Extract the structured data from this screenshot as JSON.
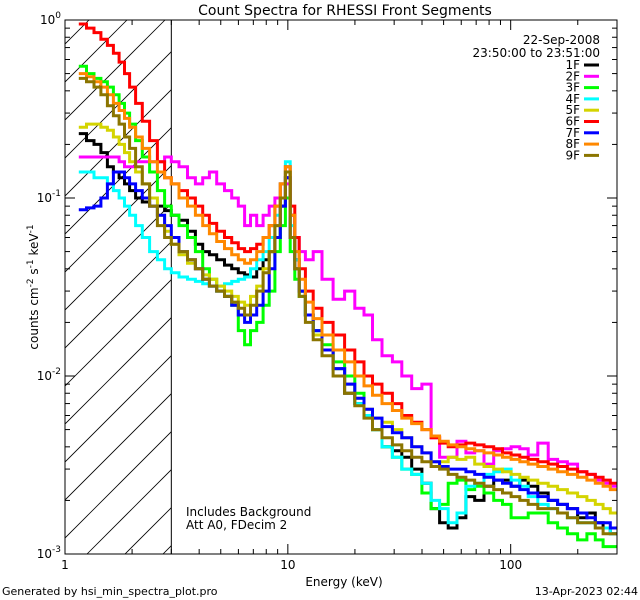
{
  "chart_data": {
    "type": "line",
    "title": "Count Spectra for RHESSI Front Segments",
    "xlabel": "Energy (keV)",
    "ylabel_parts": {
      "base": "counts cm",
      "exp1": "-2",
      "mid": " s",
      "exp2": "-1",
      "unit": " keV",
      "exp3": "-1"
    },
    "xscale": "log",
    "yscale": "log",
    "xlim": [
      1,
      300
    ],
    "ylim": [
      0.001,
      1
    ],
    "x_ticks": [
      {
        "value": 1,
        "label": "1"
      },
      {
        "value": 10,
        "label": "10"
      },
      {
        "value": 100,
        "label": "100"
      }
    ],
    "y_ticks": [
      {
        "value": 0.001,
        "base": "10",
        "exp": "-3"
      },
      {
        "value": 0.01,
        "base": "10",
        "exp": "-2"
      },
      {
        "value": 0.1,
        "base": "10",
        "exp": "-1"
      },
      {
        "value": 1,
        "base": "10",
        "exp": "0"
      }
    ],
    "hatched_region": [
      1,
      3
    ],
    "date": "22-Sep-2008",
    "time_range": "23:50:00 to 23:51:00",
    "annotations": [
      "Includes Background",
      "Att A0, FDecim 2"
    ],
    "legend_position": "top-right",
    "x": [
      1.2,
      1.3,
      1.4,
      1.5,
      1.6,
      1.7,
      1.8,
      1.9,
      2.0,
      2.15,
      2.3,
      2.5,
      2.7,
      2.9,
      3.1,
      3.4,
      3.7,
      4.0,
      4.3,
      4.6,
      5.0,
      5.4,
      5.8,
      6.2,
      6.6,
      7.0,
      7.5,
      8.0,
      8.5,
      9.0,
      9.5,
      10.0,
      10.5,
      11.0,
      11.5,
      12.5,
      13.5,
      15,
      17,
      19,
      21,
      23,
      25,
      28,
      31,
      34,
      38,
      42,
      46,
      50,
      55,
      60,
      66,
      72,
      80,
      88,
      96,
      105,
      115,
      125,
      140,
      155,
      170,
      190,
      210,
      230,
      250,
      270,
      290
    ],
    "series": [
      {
        "name": "1F",
        "color": "#000000",
        "values": [
          0.23,
          0.21,
          0.2,
          0.18,
          0.15,
          0.14,
          0.13,
          0.12,
          0.11,
          0.1,
          0.095,
          0.09,
          0.09,
          0.085,
          0.08,
          0.075,
          0.065,
          0.055,
          0.05,
          0.048,
          0.045,
          0.042,
          0.04,
          0.038,
          0.037,
          0.036,
          0.04,
          0.045,
          0.05,
          0.06,
          0.09,
          0.13,
          0.08,
          0.045,
          0.03,
          0.022,
          0.018,
          0.014,
          0.011,
          0.008,
          0.007,
          0.006,
          0.005,
          0.004,
          0.0038,
          0.0035,
          0.003,
          0.0025,
          0.0018,
          0.0015,
          0.0014,
          0.0016,
          0.0021,
          0.002,
          0.0024,
          0.0026,
          0.0026,
          0.0024,
          0.0026,
          0.0024,
          0.0022,
          0.002,
          0.0019,
          0.0018,
          0.0016,
          0.0017,
          0.0015,
          0.0014,
          0.0013
        ]
      },
      {
        "name": "2F",
        "color": "#ff00ff",
        "values": [
          0.17,
          0.17,
          0.17,
          0.17,
          0.17,
          0.17,
          0.16,
          0.15,
          0.15,
          0.16,
          0.16,
          0.16,
          0.16,
          0.17,
          0.16,
          0.15,
          0.13,
          0.12,
          0.13,
          0.14,
          0.12,
          0.11,
          0.1,
          0.09,
          0.07,
          0.08,
          0.07,
          0.08,
          0.09,
          0.1,
          0.1,
          0.12,
          0.08,
          0.06,
          0.05,
          0.045,
          0.05,
          0.035,
          0.027,
          0.03,
          0.024,
          0.022,
          0.016,
          0.013,
          0.012,
          0.01,
          0.0085,
          0.009,
          0.0045,
          0.0035,
          0.0035,
          0.0043,
          0.0037,
          0.0038,
          0.0032,
          0.0038,
          0.0039,
          0.004,
          0.0039,
          0.0036,
          0.0042,
          0.0034,
          0.0033,
          0.0032,
          0.0029,
          0.0028,
          0.0026,
          0.0025,
          0.0024
        ]
      },
      {
        "name": "3F",
        "color": "#00ff00",
        "values": [
          0.55,
          0.5,
          0.47,
          0.45,
          0.42,
          0.38,
          0.34,
          0.3,
          0.26,
          0.21,
          0.17,
          0.14,
          0.11,
          0.09,
          0.08,
          0.07,
          0.06,
          0.05,
          0.04,
          0.035,
          0.03,
          0.028,
          0.025,
          0.018,
          0.015,
          0.018,
          0.02,
          0.025,
          0.03,
          0.05,
          0.07,
          0.1,
          0.05,
          0.035,
          0.028,
          0.022,
          0.018,
          0.015,
          0.012,
          0.01,
          0.008,
          0.006,
          0.005,
          0.004,
          0.0035,
          0.003,
          0.0028,
          0.0022,
          0.0018,
          0.0019,
          0.0025,
          0.0026,
          0.0023,
          0.0024,
          0.0022,
          0.002,
          0.0019,
          0.0016,
          0.0016,
          0.0017,
          0.0017,
          0.0015,
          0.0014,
          0.0013,
          0.0012,
          0.0013,
          0.0012,
          0.0011,
          0.0011
        ]
      },
      {
        "name": "4F",
        "color": "#00ffff",
        "values": [
          0.14,
          0.14,
          0.13,
          0.13,
          0.12,
          0.11,
          0.1,
          0.09,
          0.08,
          0.07,
          0.06,
          0.05,
          0.045,
          0.04,
          0.038,
          0.036,
          0.035,
          0.034,
          0.033,
          0.032,
          0.032,
          0.033,
          0.034,
          0.035,
          0.036,
          0.04,
          0.045,
          0.05,
          0.06,
          0.08,
          0.12,
          0.16,
          0.07,
          0.045,
          0.03,
          0.022,
          0.018,
          0.014,
          0.011,
          0.009,
          0.007,
          0.006,
          0.005,
          0.004,
          0.0035,
          0.003,
          0.0028,
          0.0025,
          0.002,
          0.0018,
          0.0015,
          0.0017,
          0.0024,
          0.0025,
          0.0028,
          0.0029,
          0.003,
          0.0026,
          0.0024,
          0.0021,
          0.0019,
          0.0018,
          0.0017,
          0.0016,
          0.0015,
          0.0015,
          0.0014,
          0.0014,
          0.0013
        ]
      },
      {
        "name": "5F",
        "color": "#d4d400",
        "values": [
          0.25,
          0.26,
          0.26,
          0.25,
          0.24,
          0.22,
          0.2,
          0.18,
          0.16,
          0.14,
          0.12,
          0.1,
          0.08,
          0.065,
          0.055,
          0.048,
          0.043,
          0.04,
          0.037,
          0.035,
          0.032,
          0.03,
          0.028,
          0.026,
          0.025,
          0.028,
          0.032,
          0.04,
          0.05,
          0.07,
          0.1,
          0.14,
          0.06,
          0.04,
          0.03,
          0.022,
          0.017,
          0.014,
          0.011,
          0.009,
          0.0075,
          0.0065,
          0.0058,
          0.0055,
          0.005,
          0.0045,
          0.004,
          0.0037,
          0.0033,
          0.0033,
          0.0035,
          0.0034,
          0.0035,
          0.0032,
          0.0031,
          0.003,
          0.0029,
          0.0028,
          0.0027,
          0.0026,
          0.0025,
          0.0024,
          0.0023,
          0.0022,
          0.0021,
          0.002,
          0.0019,
          0.0018,
          0.0017
        ]
      },
      {
        "name": "6F",
        "color": "#ff0000",
        "values": [
          0.95,
          0.9,
          0.85,
          0.78,
          0.72,
          0.65,
          0.58,
          0.5,
          0.42,
          0.34,
          0.27,
          0.21,
          0.16,
          0.13,
          0.12,
          0.11,
          0.1,
          0.09,
          0.08,
          0.072,
          0.065,
          0.06,
          0.056,
          0.052,
          0.05,
          0.052,
          0.055,
          0.06,
          0.07,
          0.09,
          0.12,
          0.15,
          0.09,
          0.06,
          0.04,
          0.03,
          0.024,
          0.02,
          0.017,
          0.014,
          0.012,
          0.01,
          0.009,
          0.008,
          0.007,
          0.006,
          0.0055,
          0.005,
          0.0045,
          0.0042,
          0.004,
          0.0041,
          0.0042,
          0.0041,
          0.004,
          0.0039,
          0.0037,
          0.0036,
          0.0035,
          0.0034,
          0.0033,
          0.0032,
          0.0031,
          0.003,
          0.0029,
          0.0028,
          0.0027,
          0.0026,
          0.0025
        ]
      },
      {
        "name": "7F",
        "color": "#0000ff",
        "values": [
          0.086,
          0.088,
          0.09,
          0.1,
          0.12,
          0.14,
          0.14,
          0.13,
          0.12,
          0.11,
          0.1,
          0.09,
          0.08,
          0.07,
          0.06,
          0.05,
          0.045,
          0.04,
          0.035,
          0.032,
          0.03,
          0.028,
          0.025,
          0.022,
          0.02,
          0.022,
          0.025,
          0.03,
          0.04,
          0.06,
          0.09,
          0.13,
          0.06,
          0.04,
          0.03,
          0.022,
          0.018,
          0.014,
          0.011,
          0.009,
          0.0075,
          0.0065,
          0.0058,
          0.0052,
          0.0048,
          0.0045,
          0.004,
          0.0037,
          0.0033,
          0.0031,
          0.003,
          0.003,
          0.0029,
          0.0028,
          0.0027,
          0.0026,
          0.0025,
          0.0024,
          0.0023,
          0.0022,
          0.0021,
          0.002,
          0.0019,
          0.0018,
          0.0017,
          0.0016,
          0.0015,
          0.0015,
          0.0014
        ]
      },
      {
        "name": "8F",
        "color": "#ff8800",
        "values": [
          0.5,
          0.48,
          0.45,
          0.42,
          0.38,
          0.34,
          0.31,
          0.28,
          0.25,
          0.22,
          0.19,
          0.16,
          0.14,
          0.13,
          0.12,
          0.1,
          0.09,
          0.08,
          0.07,
          0.063,
          0.057,
          0.052,
          0.048,
          0.045,
          0.043,
          0.045,
          0.05,
          0.06,
          0.07,
          0.09,
          0.12,
          0.15,
          0.08,
          0.05,
          0.035,
          0.026,
          0.021,
          0.017,
          0.014,
          0.012,
          0.01,
          0.0088,
          0.0078,
          0.007,
          0.0064,
          0.0058,
          0.0054,
          0.005,
          0.0046,
          0.0043,
          0.0041,
          0.004,
          0.0039,
          0.0038,
          0.0037,
          0.0036,
          0.0035,
          0.0034,
          0.0033,
          0.0032,
          0.0031,
          0.003,
          0.0029,
          0.0028,
          0.0027,
          0.0026,
          0.0025,
          0.0024,
          0.0023
        ]
      },
      {
        "name": "9F",
        "color": "#8b7500",
        "values": [
          0.47,
          0.45,
          0.42,
          0.38,
          0.33,
          0.29,
          0.26,
          0.22,
          0.19,
          0.15,
          0.12,
          0.09,
          0.07,
          0.06,
          0.055,
          0.05,
          0.045,
          0.04,
          0.035,
          0.032,
          0.03,
          0.028,
          0.026,
          0.024,
          0.022,
          0.025,
          0.03,
          0.038,
          0.05,
          0.07,
          0.1,
          0.14,
          0.06,
          0.04,
          0.028,
          0.02,
          0.016,
          0.013,
          0.01,
          0.008,
          0.0068,
          0.0058,
          0.005,
          0.0045,
          0.0041,
          0.0038,
          0.0035,
          0.0033,
          0.0031,
          0.003,
          0.0028,
          0.0027,
          0.0026,
          0.0025,
          0.0024,
          0.0023,
          0.0022,
          0.0021,
          0.002,
          0.0019,
          0.0018,
          0.0018,
          0.0017,
          0.0016,
          0.0015,
          0.0015,
          0.0014,
          0.0013,
          0.0013
        ]
      }
    ]
  },
  "footer": {
    "left": "Generated by hsi_min_spectra_plot.pro",
    "right": "13-Apr-2023 02:44"
  }
}
